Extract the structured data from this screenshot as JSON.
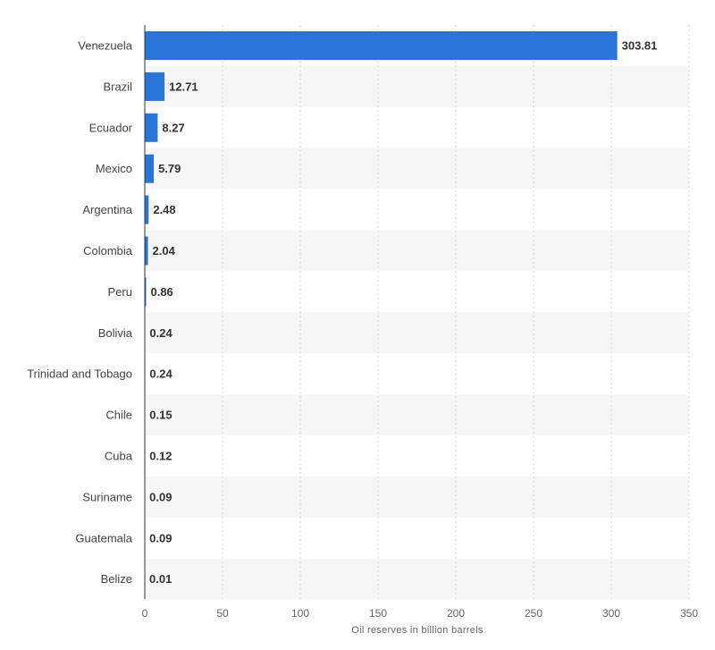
{
  "chart_data": {
    "type": "bar",
    "orientation": "horizontal",
    "categories": [
      "Venezuela",
      "Brazil",
      "Ecuador",
      "Mexico",
      "Argentina",
      "Colombia",
      "Peru",
      "Bolivia",
      "Trinidad and Tobago",
      "Chile",
      "Cuba",
      "Suriname",
      "Guatemala",
      "Belize"
    ],
    "values": [
      303.81,
      12.71,
      8.27,
      5.79,
      2.48,
      2.04,
      0.86,
      0.24,
      0.24,
      0.15,
      0.12,
      0.09,
      0.09,
      0.01
    ],
    "data_labels": [
      "303.81",
      "12.71",
      "8.27",
      "5.79",
      "2.48",
      "2.04",
      "0.86",
      "0.24",
      "0.24",
      "0.15",
      "0.12",
      "0.09",
      "0.09",
      "0.01"
    ],
    "xlabel": "Oil reserves in billion barrels",
    "ylabel": "",
    "xlim": [
      0,
      350
    ],
    "xticks": [
      0,
      50,
      100,
      150,
      200,
      250,
      300,
      350
    ],
    "xtick_labels": [
      "0",
      "50",
      "100",
      "150",
      "200",
      "250",
      "300",
      "350"
    ],
    "grid": "vertical-dashed",
    "legend": "none",
    "colors": {
      "bar": "#2a74d9",
      "band": "#f6f6f6",
      "grid": "#d4d4d4",
      "axis": "#333333"
    }
  }
}
